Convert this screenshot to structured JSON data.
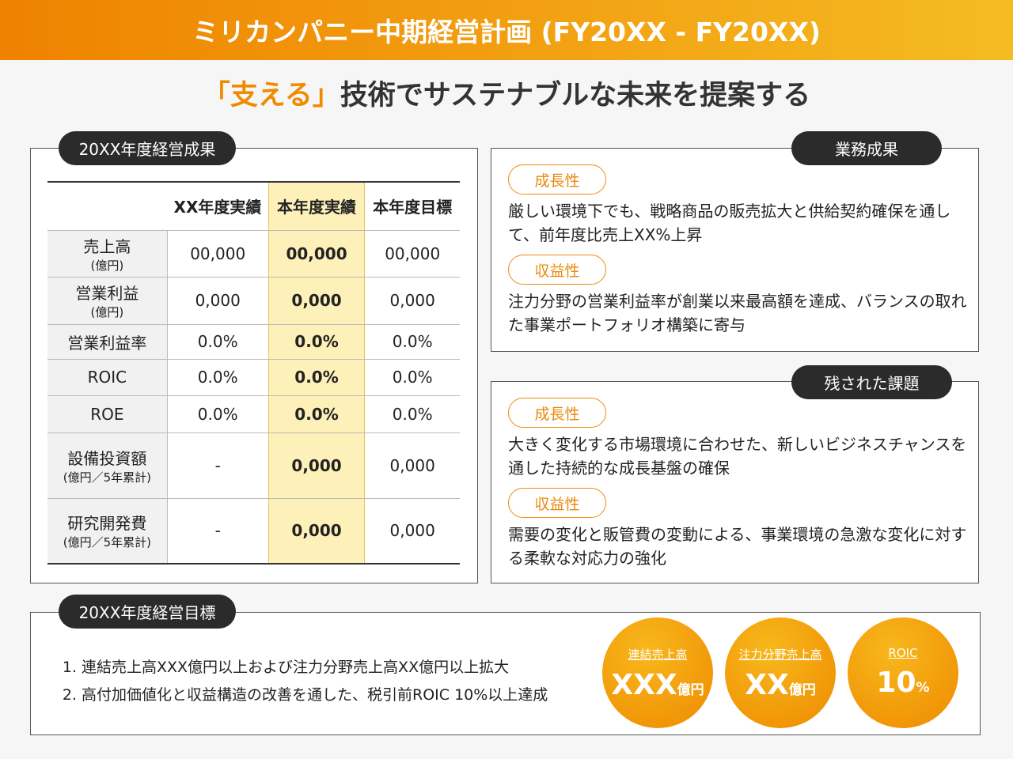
{
  "header": {
    "title": "ミリカンパニー中期経営計画 (FY20XX - FY20XX)"
  },
  "subtitle": {
    "highlight": "「支える」",
    "rest": "技術でサステナブルな未来を提案する"
  },
  "results": {
    "title": "20XX年度経営成果",
    "table": {
      "columns": [
        "XX年度実績",
        "本年度実績",
        "本年度目標"
      ],
      "rows": [
        {
          "label": "売上高",
          "unit": "(億円)",
          "cells": [
            "00,000",
            "00,000",
            "00,000"
          ]
        },
        {
          "label": "営業利益",
          "unit": "(億円)",
          "cells": [
            "0,000",
            "0,000",
            "0,000"
          ]
        },
        {
          "label": "営業利益率",
          "cells": [
            "0.0%",
            "0.0%",
            "0.0%"
          ]
        },
        {
          "label": "ROIC",
          "cells": [
            "0.0%",
            "0.0%",
            "0.0%"
          ]
        },
        {
          "label": "ROE",
          "cells": [
            "0.0%",
            "0.0%",
            "0.0%"
          ]
        },
        {
          "label": "設備投資額",
          "unit": "(億円／5年累計)",
          "cells": [
            "-",
            "0,000",
            "0,000"
          ]
        },
        {
          "label": "研究開発費",
          "unit": "(億円／5年累計)",
          "cells": [
            "-",
            "0,000",
            "0,000"
          ]
        }
      ]
    }
  },
  "achievements": {
    "title": "業務成果",
    "items": [
      {
        "tag": "成長性",
        "text": "厳しい環境下でも、戦略商品の販売拡大と供給契約確保を通して、前年度比売上XX%上昇"
      },
      {
        "tag": "収益性",
        "text": "注力分野の営業利益率が創業以来最高額を達成、バランスの取れた事業ポートフォリオ構築に寄与"
      }
    ]
  },
  "issues": {
    "title": "残された課題",
    "items": [
      {
        "tag": "成長性",
        "text": "大きく変化する市場環境に合わせた、新しいビジネスチャンスを通した持続的な成長基盤の確保"
      },
      {
        "tag": "収益性",
        "text": "需要の変化と販管費の変動による、事業環境の急激な変化に対する柔軟な対応力の強化"
      }
    ]
  },
  "goals": {
    "title": "20XX年度経営目標",
    "list": [
      "連結売上高XXX億円以上および注力分野売上高XX億円以上拡大",
      "高付加価値化と収益構造の改善を通した、税引前ROIC 10%以上達成"
    ],
    "circles": [
      {
        "label": "連結売上高",
        "value": "XXX",
        "unit": "億円"
      },
      {
        "label": "注力分野売上高",
        "value": "XX",
        "unit": "億円"
      },
      {
        "label": "ROIC",
        "value": "10",
        "unit": "%"
      }
    ]
  }
}
